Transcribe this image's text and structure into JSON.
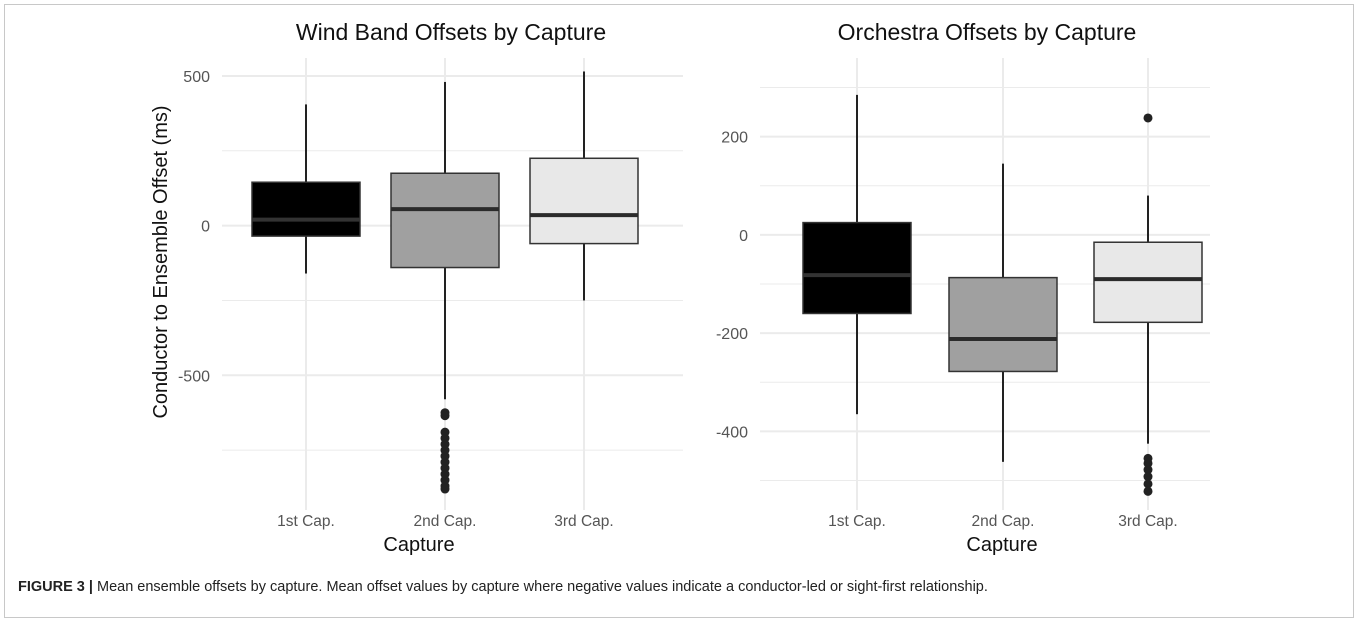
{
  "figure": {
    "label": "FIGURE 3 |",
    "caption": "Mean ensemble offsets by capture. Mean offset values by capture where negative values indicate a conductor-led or sight-first relationship."
  },
  "colors": {
    "box_fills": [
      "#000000",
      "#a0a0a0",
      "#e8e8e8"
    ],
    "median_dark": "#333333",
    "median_light": "#2b2b2b",
    "whisker": "#222222",
    "grid": "#ebebeb",
    "outlier": "#222222"
  },
  "chart_data": [
    {
      "type": "box",
      "title": "Wind Band Offsets by Capture",
      "xlabel": "Capture",
      "ylabel": "Conductor to Ensemble Offset (ms)",
      "categories": [
        "1st Cap.",
        "2nd Cap.",
        "3rd Cap."
      ],
      "ylim": [
        -950,
        560
      ],
      "yticks": [
        500,
        0,
        -500
      ],
      "ytick_labels": [
        "500",
        "0",
        "-500"
      ],
      "grid": true,
      "boxes": [
        {
          "min": -160,
          "q1": -35,
          "median": 20,
          "q3": 145,
          "max": 405,
          "outliers": []
        },
        {
          "min": -580,
          "q1": -140,
          "median": 55,
          "q3": 175,
          "max": 480,
          "outliers": [
            -625,
            -635,
            -690,
            -710,
            -730,
            -750,
            -770,
            -790,
            -810,
            -830,
            -850,
            -870,
            -880
          ]
        },
        {
          "min": -250,
          "q1": -60,
          "median": 35,
          "q3": 225,
          "max": 515,
          "outliers": []
        }
      ]
    },
    {
      "type": "box",
      "title": "Orchestra Offsets by Capture",
      "xlabel": "Capture",
      "ylabel": "",
      "categories": [
        "1st Cap.",
        "2nd Cap.",
        "3rd Cap."
      ],
      "ylim": [
        -560,
        360
      ],
      "yticks": [
        200,
        0,
        -200,
        -400
      ],
      "ytick_labels": [
        "200",
        "0",
        "-200",
        "-400"
      ],
      "grid": true,
      "boxes": [
        {
          "min": -365,
          "q1": -160,
          "median": -82,
          "q3": 25,
          "max": 285,
          "outliers": []
        },
        {
          "min": -462,
          "q1": -278,
          "median": -212,
          "q3": -87,
          "max": 145,
          "outliers": []
        },
        {
          "min": -425,
          "q1": -178,
          "median": -90,
          "q3": -15,
          "max": 80,
          "outliers": [
            238,
            -455,
            -465,
            -478,
            -492,
            -507,
            -522
          ]
        }
      ]
    }
  ]
}
